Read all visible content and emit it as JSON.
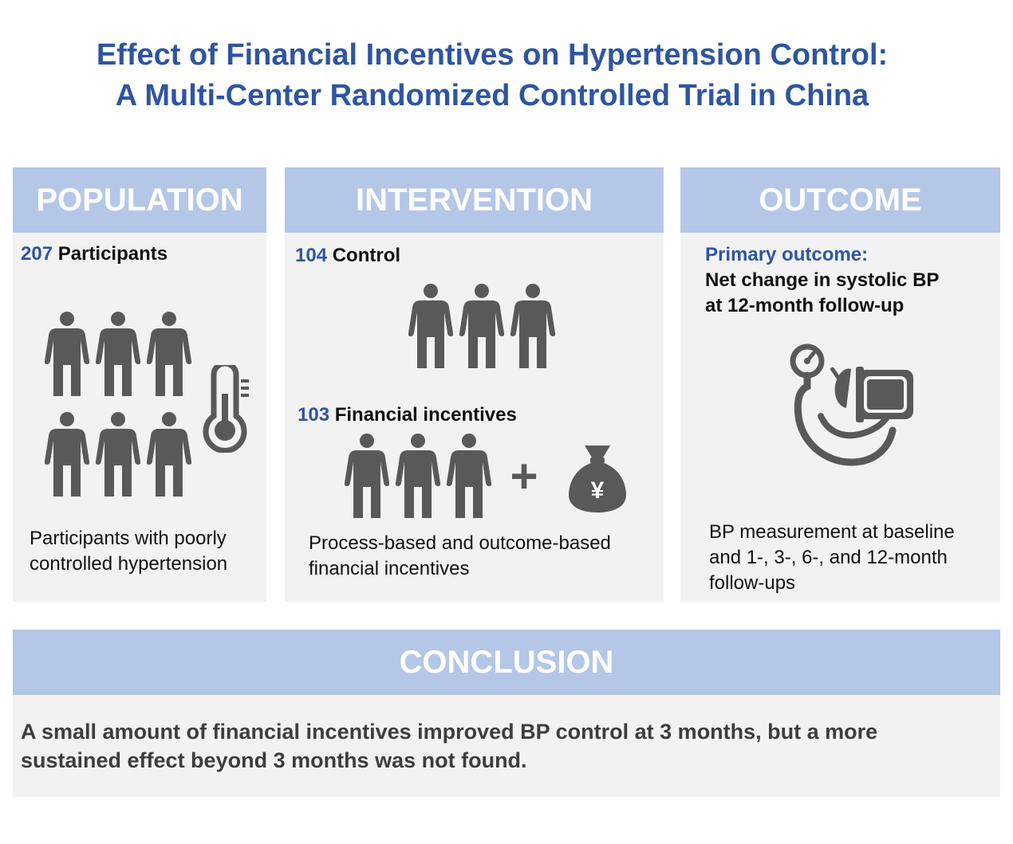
{
  "title": {
    "line1": "Effect of Financial Incentives on Hypertension Control:",
    "line2": "A Multi-Center Randomized Controlled Trial in China"
  },
  "population": {
    "heading": "POPULATION",
    "count": "207",
    "count_label": "Participants",
    "desc_line1": "Participants with poorly",
    "desc_line2": "controlled hypertension",
    "icons": [
      "person-icon",
      "thermometer-icon"
    ]
  },
  "intervention": {
    "heading": "INTERVENTION",
    "control_count": "104",
    "control_label": "Control",
    "incentive_count": "103",
    "incentive_label": "Financial incentives",
    "plus_symbol": "+",
    "money_symbol": "¥",
    "desc_line1": "Process-based and outcome-based",
    "desc_line2": "financial incentives",
    "icons": [
      "person-icon",
      "plus-icon",
      "money-bag-icon"
    ]
  },
  "outcome": {
    "heading": "OUTCOME",
    "primary_label": "Primary outcome:",
    "primary_line1": "Net change in systolic BP",
    "primary_line2": "at 12-month follow-up",
    "desc_line1": "BP measurement at baseline",
    "desc_line2": "and 1-, 3-, 6-, and 12-month",
    "desc_line3": "follow-ups",
    "icons": [
      "blood-pressure-monitor-icon"
    ]
  },
  "conclusion": {
    "heading": "CONCLUSION",
    "line1": "A small amount of financial incentives improved BP control at 3 months, but a more",
    "line2": "sustained effect beyond 3 months was not found."
  },
  "colors": {
    "title_blue": "#2e55a0",
    "header_bar": "#b4c7e7",
    "panel_bg": "#f2f2f2",
    "icon_gray": "#595959"
  }
}
